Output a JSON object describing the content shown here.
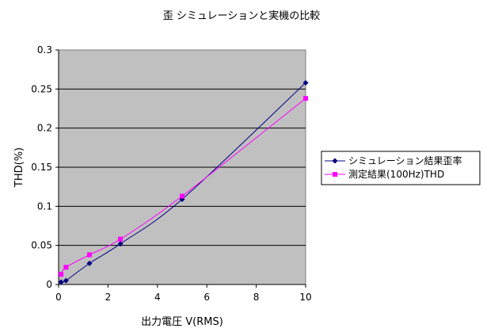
{
  "chart_data": {
    "type": "line",
    "title": "歪 シミュレーションと実機の比較",
    "xlabel": "出力電圧 V(RMS)",
    "ylabel": "THD(%)",
    "xlim": [
      0,
      10
    ],
    "ylim": [
      0,
      0.3
    ],
    "x_ticks": [
      "0",
      "2",
      "4",
      "6",
      "8",
      "10"
    ],
    "y_ticks": [
      "0",
      "0.05",
      "0.1",
      "0.15",
      "0.2",
      "0.25",
      "0.3"
    ],
    "grid": "horizontal",
    "legend_position": "right",
    "series": [
      {
        "name": "シミュレーション結果歪率",
        "color": "#000080",
        "marker": "diamond",
        "x": [
          0.1,
          0.3,
          1.25,
          2.5,
          5,
          10
        ],
        "y": [
          0.003,
          0.005,
          0.027,
          0.052,
          0.109,
          0.258
        ]
      },
      {
        "name": "測定結果(100Hz)THD",
        "color": "#ff00ff",
        "marker": "square",
        "x": [
          0.1,
          0.3,
          1.25,
          2.5,
          5,
          10
        ],
        "y": [
          0.013,
          0.022,
          0.038,
          0.058,
          0.113,
          0.238
        ]
      }
    ],
    "plot_background": "#c0c0c0"
  }
}
